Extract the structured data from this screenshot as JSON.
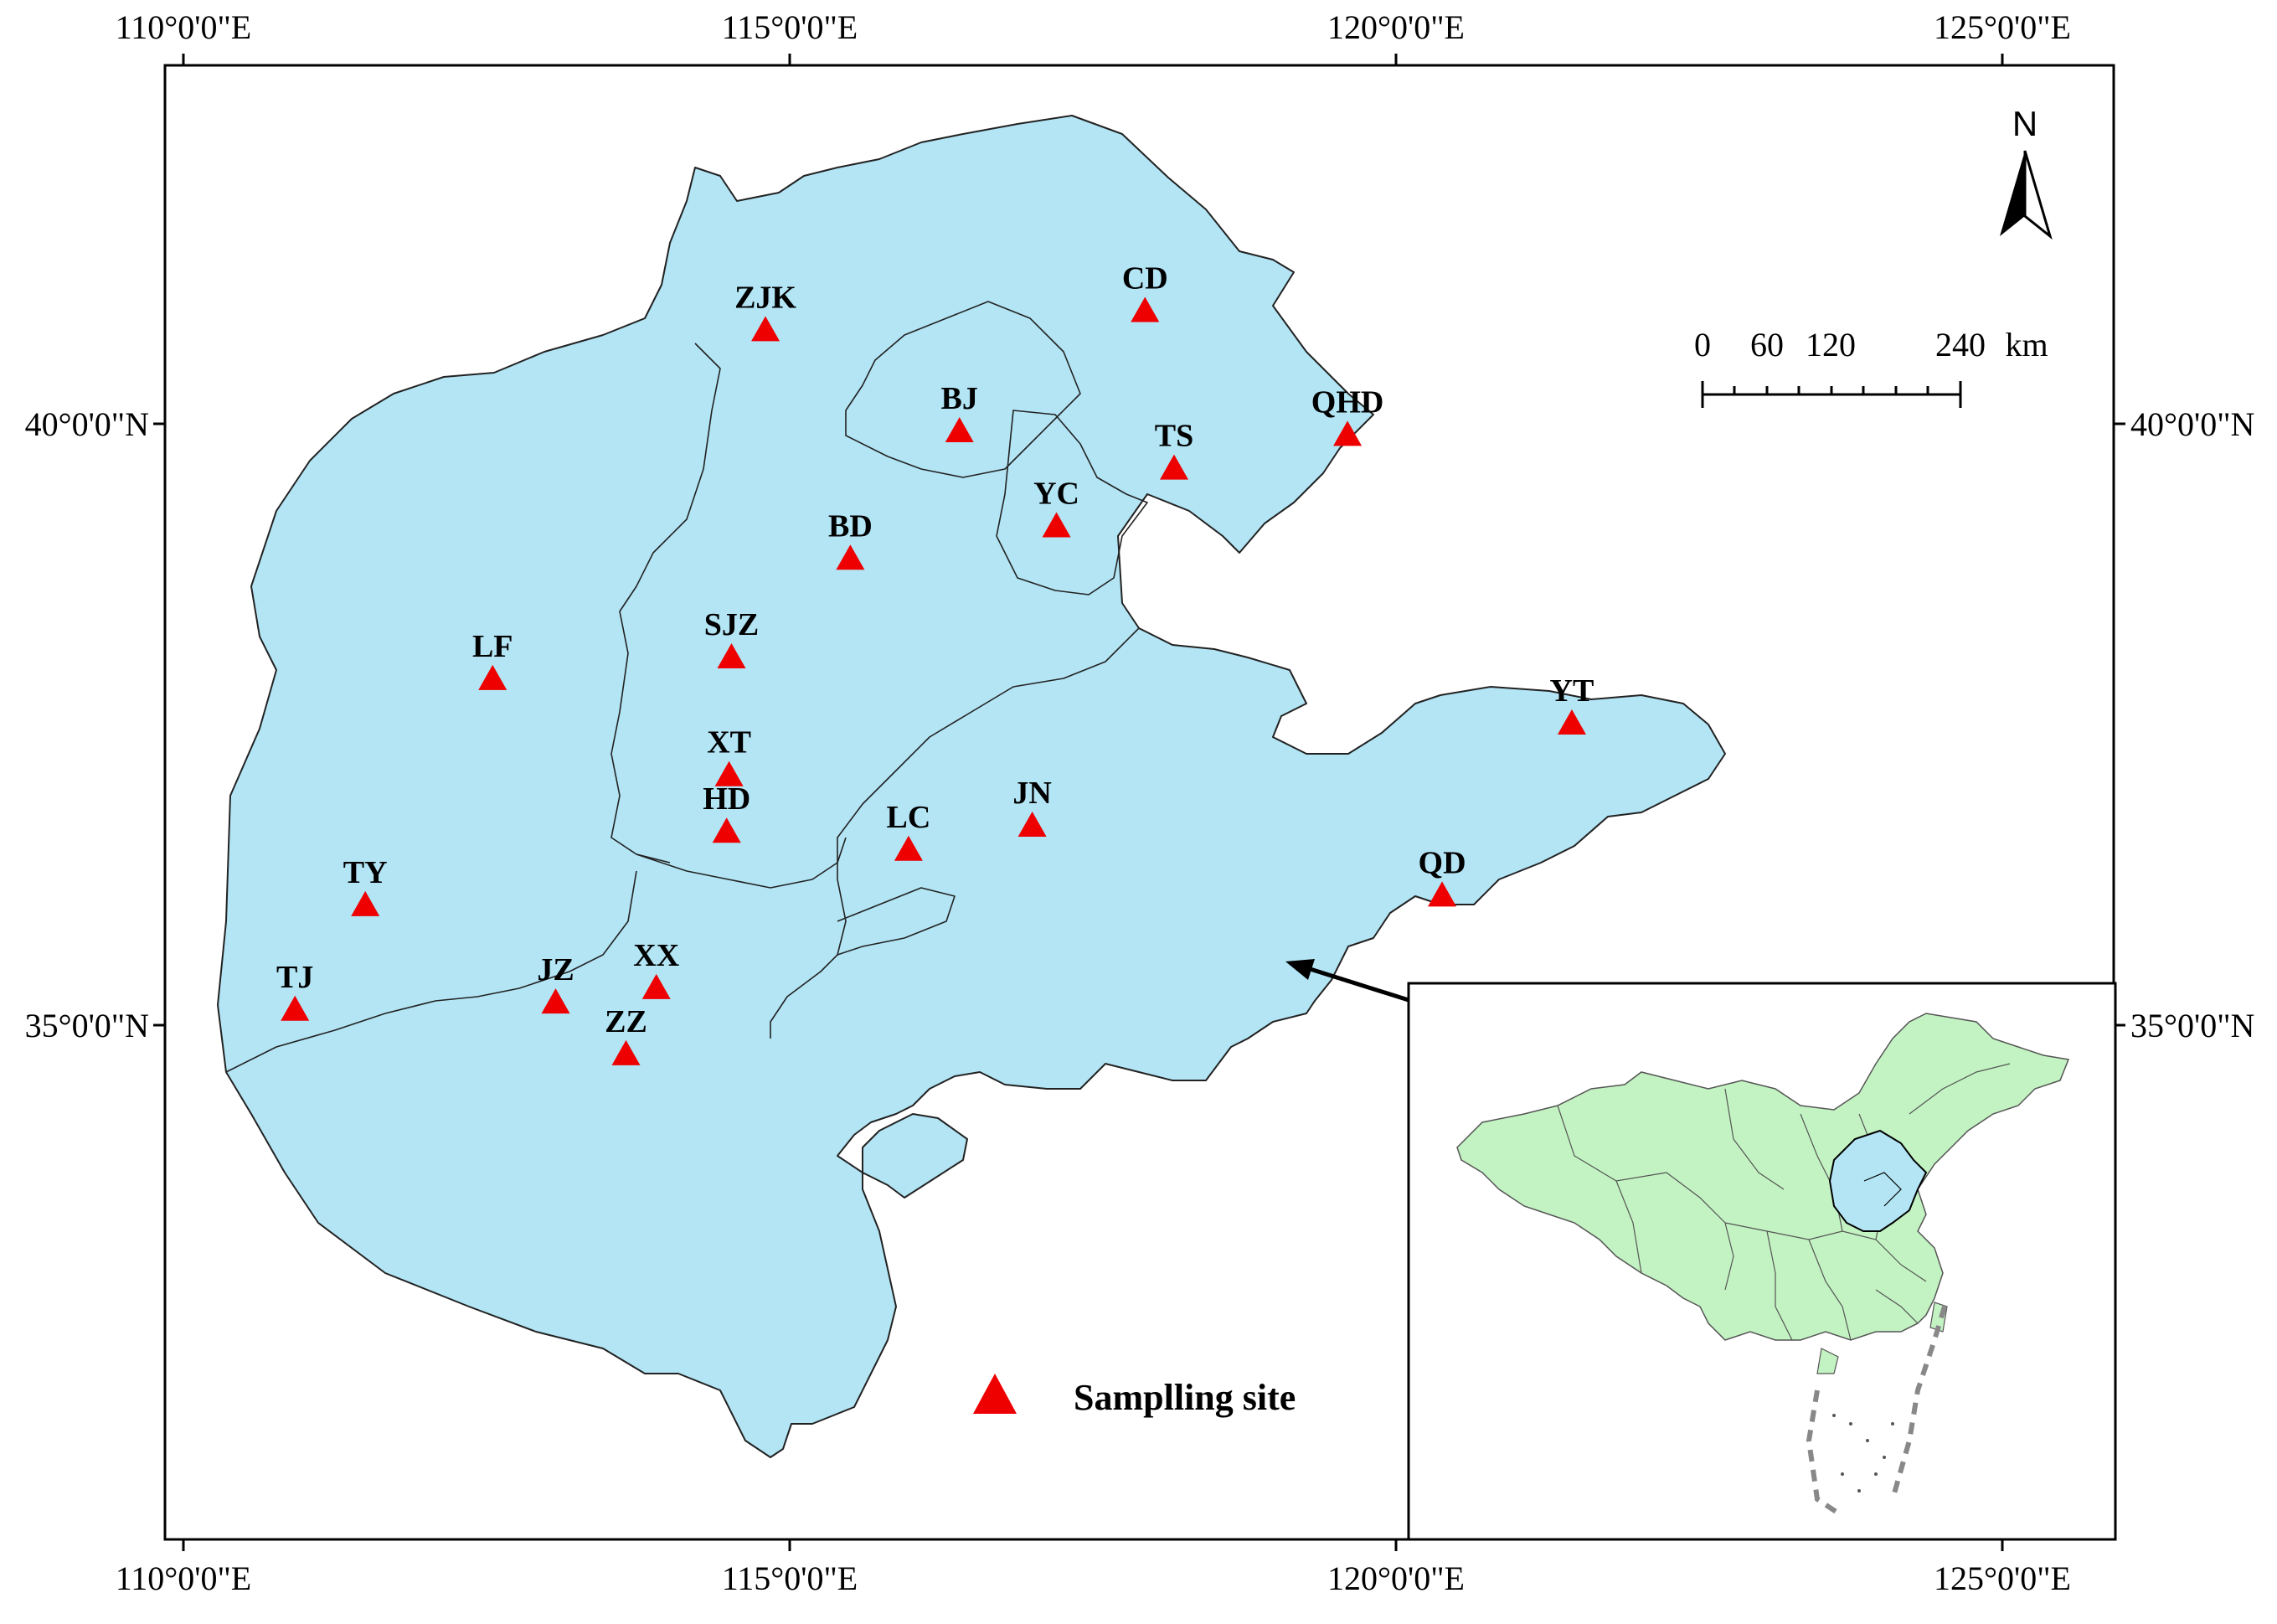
{
  "map": {
    "colors": {
      "region_fill": "#b3e5f5",
      "china_fill": "#c3f3c3",
      "marker": "#ee0000",
      "border": "#000000"
    },
    "axes": {
      "top": [
        "110°0'0\"E",
        "115°0'0\"E",
        "120°0'0\"E",
        "125°0'0\"E"
      ],
      "bottom": [
        "110°0'0\"E",
        "115°0'0\"E",
        "120°0'0\"E",
        "125°0'0\"E"
      ],
      "left": [
        "40°0'0\"N",
        "35°0'0\"N"
      ],
      "right": [
        "40°0'0\"N",
        "35°0'0\"N"
      ]
    },
    "north_arrow": {
      "label": "N"
    },
    "scale_bar": {
      "labels": [
        "0",
        "60",
        "120",
        "240",
        "km"
      ]
    },
    "legend": {
      "label": "Samplling site",
      "icon": "red-triangle-icon"
    },
    "inset": {
      "description_icon": "china-map-icon"
    }
  },
  "sites": [
    {
      "code": "ZJK",
      "lon": 114.8,
      "lat": 40.77
    },
    {
      "code": "CD",
      "lon": 117.93,
      "lat": 40.93
    },
    {
      "code": "BJ",
      "lon": 116.4,
      "lat": 39.93
    },
    {
      "code": "TS",
      "lon": 118.17,
      "lat": 39.62
    },
    {
      "code": "QHD",
      "lon": 119.6,
      "lat": 39.9
    },
    {
      "code": "YC",
      "lon": 117.2,
      "lat": 39.14
    },
    {
      "code": "BD",
      "lon": 115.5,
      "lat": 38.87
    },
    {
      "code": "SJZ",
      "lon": 114.52,
      "lat": 38.05
    },
    {
      "code": "LF",
      "lon": 112.55,
      "lat": 37.87
    },
    {
      "code": "XT",
      "lon": 114.5,
      "lat": 37.07
    },
    {
      "code": "HD",
      "lon": 114.48,
      "lat": 36.6
    },
    {
      "code": "LC",
      "lon": 115.98,
      "lat": 36.45
    },
    {
      "code": "JN",
      "lon": 117.0,
      "lat": 36.65
    },
    {
      "code": "YT",
      "lon": 121.45,
      "lat": 37.5
    },
    {
      "code": "QD",
      "lon": 120.38,
      "lat": 36.07
    },
    {
      "code": "TY",
      "lon": 111.5,
      "lat": 35.99
    },
    {
      "code": "TJ",
      "lon": 110.92,
      "lat": 35.12
    },
    {
      "code": "JZ",
      "lon": 113.07,
      "lat": 35.18
    },
    {
      "code": "XX",
      "lon": 113.9,
      "lat": 35.3
    },
    {
      "code": "ZZ",
      "lon": 113.65,
      "lat": 34.75
    }
  ]
}
